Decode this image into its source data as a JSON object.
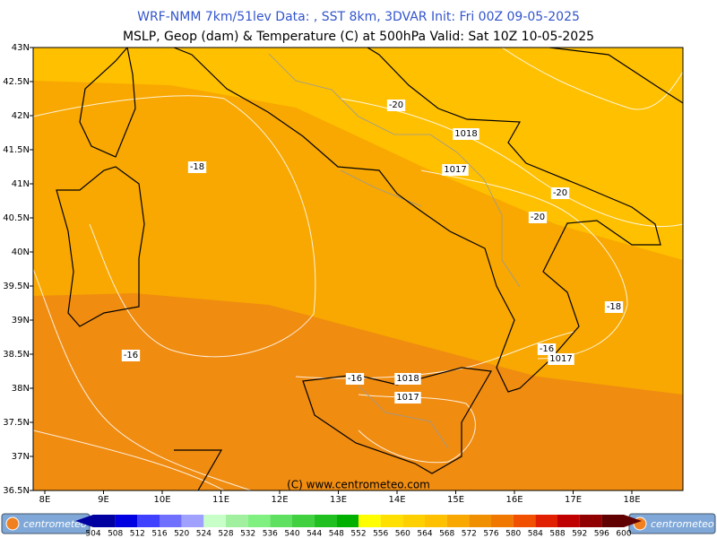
{
  "header": {
    "title": "WRF-NMM 7km/51lev  Data: , SST 8km, 3DVAR  Init: Fri 00Z 09-05-2025",
    "subtitle": "MSLP, Geop (dam) & Temperature (C) at 500hPa  Valid: Sat 10Z 10-05-2025"
  },
  "map": {
    "lat_labels": [
      "43N",
      "42.5N",
      "42N",
      "41.5N",
      "41N",
      "40.5N",
      "40N",
      "39.5N",
      "39N",
      "38.5N",
      "38N",
      "37.5N",
      "37N",
      "36.5N"
    ],
    "lon_labels": [
      "8E",
      "9E",
      "10E",
      "11E",
      "12E",
      "13E",
      "14E",
      "15E",
      "16E",
      "17E",
      "18E"
    ],
    "contour_labels": [
      "-20",
      "1018",
      "1017",
      "-18",
      "-20",
      "-20",
      "-18",
      "-16",
      "1017",
      "-16",
      "-16",
      "1018",
      "1017"
    ],
    "copyright": "(C) www.centrometeo.com"
  },
  "colorbar": {
    "labels": [
      "504",
      "508",
      "512",
      "516",
      "520",
      "524",
      "528",
      "532",
      "536",
      "540",
      "544",
      "548",
      "552",
      "556",
      "560",
      "564",
      "568",
      "572",
      "576",
      "580",
      "584",
      "588",
      "592",
      "596",
      "600"
    ],
    "colors": [
      "#0000a0",
      "#0000e0",
      "#4040ff",
      "#7070ff",
      "#a0a0ff",
      "#c8ffc8",
      "#a0f0a0",
      "#80f080",
      "#60e060",
      "#40d040",
      "#20c020",
      "#00b000",
      "#ffff00",
      "#ffe000",
      "#ffd000",
      "#ffc000",
      "#f8a800",
      "#f09000",
      "#f07800",
      "#f05000",
      "#e02000",
      "#c00000",
      "#900000",
      "#600000"
    ]
  },
  "footer": {
    "logo": "centrometeo"
  }
}
